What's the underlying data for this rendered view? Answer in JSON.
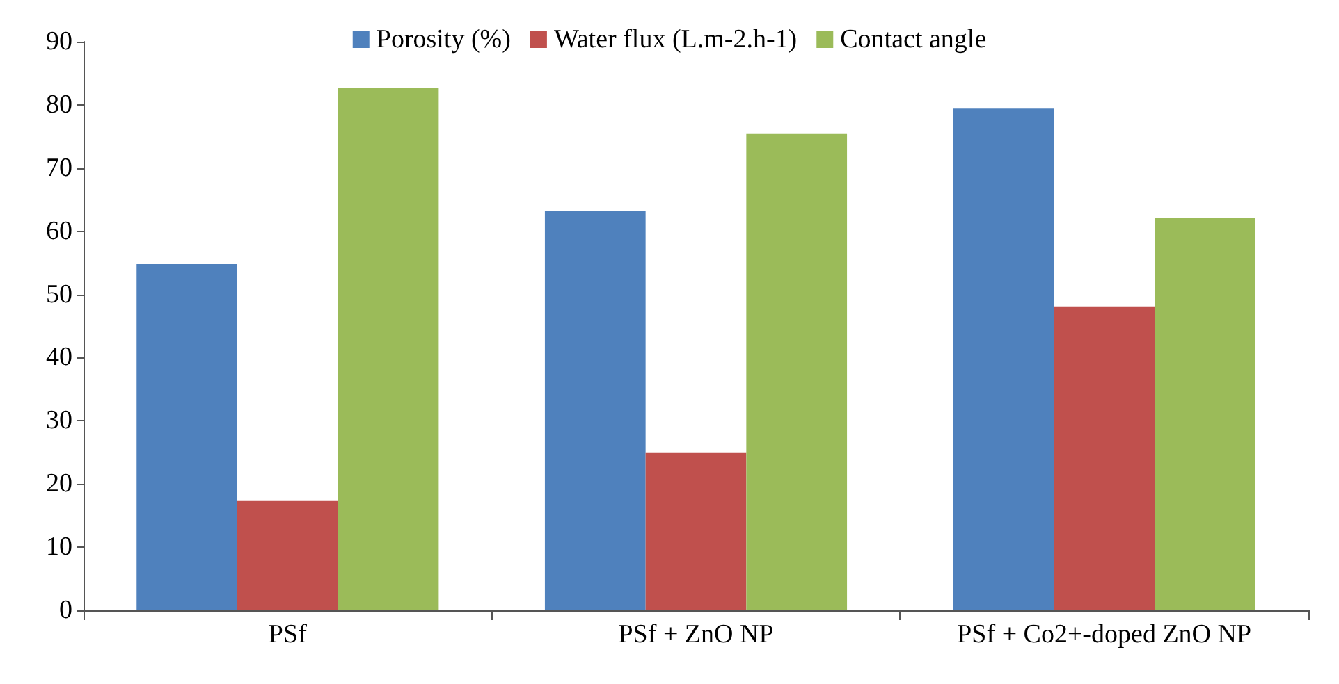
{
  "chart_data": {
    "type": "bar",
    "categories": [
      "PSf",
      "PSf + ZnO NP",
      "PSf + Co2+-doped ZnO NP"
    ],
    "series": [
      {
        "name": "Porosity (%)",
        "color": "#4f81bd",
        "values": [
          54.8,
          63.2,
          79.4
        ]
      },
      {
        "name": "Water flux (L.m-2.h-1)",
        "color": "#c0504d",
        "values": [
          17.3,
          25,
          48.1
        ]
      },
      {
        "name": "Contact angle",
        "color": "#9bbb59",
        "values": [
          82.7,
          75.4,
          62.1
        ]
      }
    ],
    "ylim": [
      0,
      90
    ],
    "yticks": [
      0,
      10,
      20,
      30,
      40,
      50,
      60,
      70,
      80,
      90
    ],
    "grid": false,
    "legend": "top"
  }
}
